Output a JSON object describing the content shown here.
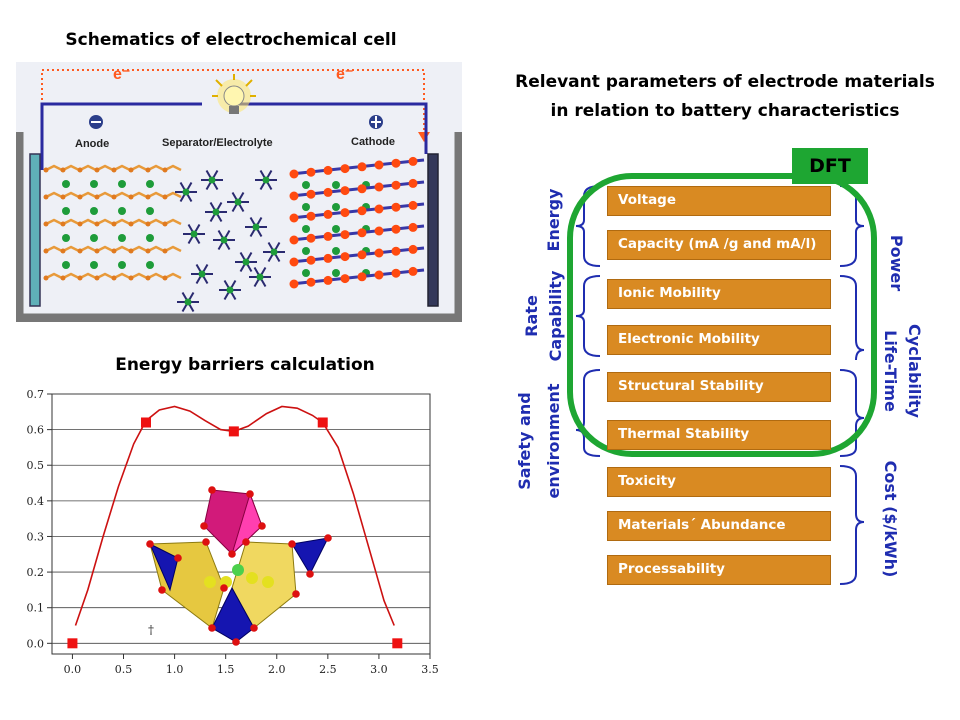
{
  "cell": {
    "title": "Schematics of electrochemical cell",
    "electron_left": "e⁻",
    "electron_right": "e⁻",
    "anode_label": "Anode",
    "separator_label": "Separator/Electrolyte",
    "cathode_label": "Cathode",
    "colors": {
      "frame": "#777777",
      "panel": "#eef0f6",
      "wire": "#2a2aa0",
      "electron_path": "#ff5a1f",
      "anode_ion": "#1e9c3a",
      "cathode_atom": "#ff4a10",
      "cathode_link": "#3838a8"
    }
  },
  "parameters": {
    "title_line1": "Relevant parameters of electrode materials",
    "title_line2": "in relation to battery characteristics",
    "dft_label": "DFT",
    "items": [
      "Voltage",
      "Capacity (mA /g and mA/l)",
      "Ionic Mobility",
      "Electronic Mobility",
      "Structural Stability",
      "Thermal Stability",
      "Toxicity",
      "Materials´ Abundance",
      "Processability"
    ],
    "left_groups": {
      "energy": "Energy",
      "rate_line1": "Rate",
      "rate_line2": "Capability",
      "safety_line1": "Safety and",
      "safety_line2": "environment"
    },
    "right_groups": {
      "power": "Power",
      "cyclability": "Cyclability",
      "life_time": "Life-Time",
      "cost": "Cost ($/kWh)"
    },
    "colors": {
      "box": "#d98a22",
      "box_border": "#b06a10",
      "label": "#1f2db0",
      "brace": "#1f2db0",
      "dft": "#1ea632"
    }
  },
  "barrier": {
    "title": "Energy barriers calculation",
    "axis_marker": "†"
  },
  "chart_data": {
    "type": "scatter",
    "x": [
      0.0,
      0.72,
      1.58,
      2.45,
      3.18
    ],
    "y": [
      0.0,
      0.62,
      0.595,
      0.62,
      0.0
    ],
    "curve": {
      "x": [
        0.03,
        0.15,
        0.3,
        0.45,
        0.6,
        0.72,
        0.85,
        1.0,
        1.15,
        1.3,
        1.45,
        1.58,
        1.72,
        1.9,
        2.05,
        2.2,
        2.35,
        2.45,
        2.6,
        2.75,
        2.9,
        3.05,
        3.15
      ],
      "y": [
        0.05,
        0.15,
        0.3,
        0.44,
        0.56,
        0.625,
        0.655,
        0.665,
        0.652,
        0.625,
        0.6,
        0.595,
        0.61,
        0.645,
        0.665,
        0.66,
        0.64,
        0.62,
        0.55,
        0.42,
        0.27,
        0.12,
        0.05
      ]
    },
    "xticks": [
      "0.0",
      "0.5",
      "1.0",
      "1.5",
      "2.0",
      "2.5",
      "3.0",
      "3.5"
    ],
    "yticks": [
      "0.0",
      "0.1",
      "0.2",
      "0.3",
      "0.4",
      "0.5",
      "0.6",
      "0.7"
    ],
    "xlim": [
      -0.2,
      3.5
    ],
    "ylim": [
      -0.03,
      0.7
    ],
    "grid": true,
    "colors": {
      "line": "#cc1111",
      "marker": "#ee1111",
      "grid": "#444444"
    }
  }
}
